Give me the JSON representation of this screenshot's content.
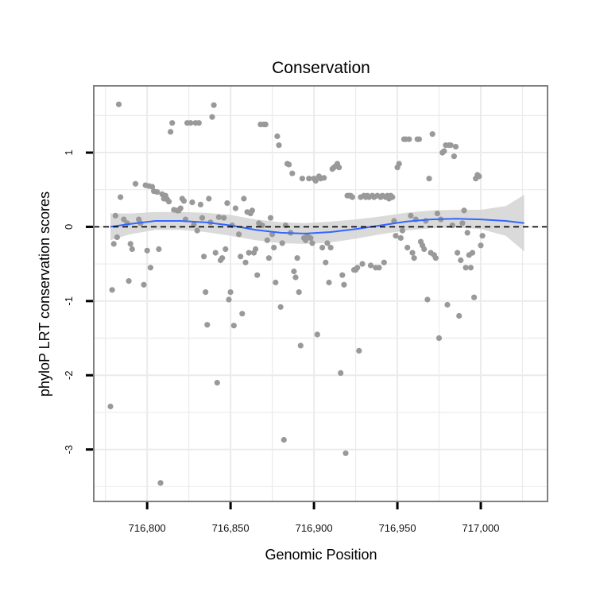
{
  "chart_data": {
    "type": "scatter",
    "title": "Conservation",
    "xlabel": "Genomic Position",
    "ylabel": "phyloP LRT conservation scores",
    "xlim": [
      716768,
      717040
    ],
    "ylim": [
      -3.7,
      1.9
    ],
    "x_ticks": [
      716800,
      716850,
      716900,
      716950,
      717000
    ],
    "x_tick_labels": [
      "716,800",
      "716,850",
      "716,900",
      "716,950",
      "717,000"
    ],
    "y_ticks": [
      -3,
      -2,
      -1,
      0,
      1
    ],
    "y_tick_labels": [
      "-3",
      "-2",
      "-1",
      "0",
      "1"
    ],
    "reference_line": 0,
    "colors": {
      "points": "#999999",
      "smooth_line": "#3366ff",
      "ribbon": "#d4d4d4",
      "grid": "#ebebeb",
      "frame": "#7f7f7f",
      "reference": "#000000"
    },
    "points": [
      [
        716778,
        -2.42
      ],
      [
        716779,
        -0.85
      ],
      [
        716780,
        -0.23
      ],
      [
        716781,
        0.15
      ],
      [
        716782,
        -0.14
      ],
      [
        716783,
        1.65
      ],
      [
        716784,
        0.4
      ],
      [
        716786,
        0.1
      ],
      [
        716788,
        0.05
      ],
      [
        716789,
        -0.73
      ],
      [
        716790,
        -0.23
      ],
      [
        716791,
        -0.3
      ],
      [
        716793,
        0.58
      ],
      [
        716795,
        0.1
      ],
      [
        716796,
        0.05
      ],
      [
        716798,
        -0.78
      ],
      [
        716799,
        0.56
      ],
      [
        716800,
        -0.32
      ],
      [
        716801,
        0.55
      ],
      [
        716802,
        -0.55
      ],
      [
        716803,
        0.54
      ],
      [
        716804,
        0.48
      ],
      [
        716806,
        0.47
      ],
      [
        716807,
        -0.3
      ],
      [
        716808,
        -3.45
      ],
      [
        716809,
        0.44
      ],
      [
        716810,
        0.38
      ],
      [
        716811,
        0.42
      ],
      [
        716812,
        0.37
      ],
      [
        716813,
        0.34
      ],
      [
        716814,
        1.28
      ],
      [
        716815,
        1.4
      ],
      [
        716816,
        0.23
      ],
      [
        716818,
        0.22
      ],
      [
        716819,
        0.22
      ],
      [
        716820,
        0.25
      ],
      [
        716821,
        0.38
      ],
      [
        716822,
        0.35
      ],
      [
        716823,
        0.1
      ],
      [
        716824,
        1.4
      ],
      [
        716826,
        1.4
      ],
      [
        716827,
        0.33
      ],
      [
        716828,
        0.03
      ],
      [
        716829,
        1.4
      ],
      [
        716830,
        -0.05
      ],
      [
        716831,
        1.4
      ],
      [
        716832,
        0.3
      ],
      [
        716833,
        0.12
      ],
      [
        716834,
        -0.4
      ],
      [
        716835,
        -0.88
      ],
      [
        716836,
        -1.32
      ],
      [
        716837,
        0.38
      ],
      [
        716838,
        0.06
      ],
      [
        716839,
        1.48
      ],
      [
        716840,
        1.64
      ],
      [
        716841,
        -0.35
      ],
      [
        716842,
        -2.1
      ],
      [
        716843,
        0.13
      ],
      [
        716844,
        -0.45
      ],
      [
        716845,
        -0.42
      ],
      [
        716846,
        0.12
      ],
      [
        716847,
        -0.3
      ],
      [
        716848,
        0.32
      ],
      [
        716849,
        -0.98
      ],
      [
        716850,
        -0.88
      ],
      [
        716851,
        0.02
      ],
      [
        716852,
        -1.33
      ],
      [
        716853,
        0.25
      ],
      [
        716855,
        -0.1
      ],
      [
        716856,
        -0.4
      ],
      [
        716857,
        -1.17
      ],
      [
        716858,
        0.38
      ],
      [
        716859,
        -0.48
      ],
      [
        716860,
        0.2
      ],
      [
        716861,
        -0.35
      ],
      [
        716862,
        0.18
      ],
      [
        716863,
        0.22
      ],
      [
        716864,
        -0.35
      ],
      [
        716865,
        -0.3
      ],
      [
        716866,
        -0.65
      ],
      [
        716867,
        0.05
      ],
      [
        716868,
        1.38
      ],
      [
        716869,
        0.02
      ],
      [
        716870,
        1.38
      ],
      [
        716871,
        1.38
      ],
      [
        716872,
        -0.18
      ],
      [
        716873,
        -0.42
      ],
      [
        716874,
        0.12
      ],
      [
        716875,
        -0.1
      ],
      [
        716876,
        -0.28
      ],
      [
        716877,
        -0.75
      ],
      [
        716878,
        1.22
      ],
      [
        716879,
        1.1
      ],
      [
        716880,
        -1.08
      ],
      [
        716881,
        -0.22
      ],
      [
        716882,
        -2.87
      ],
      [
        716883,
        0.02
      ],
      [
        716884,
        0.85
      ],
      [
        716885,
        0.84
      ],
      [
        716886,
        -0.08
      ],
      [
        716887,
        0.72
      ],
      [
        716888,
        -0.6
      ],
      [
        716889,
        -0.68
      ],
      [
        716890,
        -0.42
      ],
      [
        716891,
        -0.88
      ],
      [
        716892,
        -1.6
      ],
      [
        716893,
        0.65
      ],
      [
        716894,
        -0.15
      ],
      [
        716895,
        -0.18
      ],
      [
        716896,
        -0.12
      ],
      [
        716897,
        0.65
      ],
      [
        716898,
        -0.15
      ],
      [
        716899,
        -0.22
      ],
      [
        716900,
        0.65
      ],
      [
        716901,
        0.62
      ],
      [
        716902,
        -1.45
      ],
      [
        716903,
        0.68
      ],
      [
        716904,
        0.65
      ],
      [
        716905,
        -0.28
      ],
      [
        716906,
        0.66
      ],
      [
        716907,
        -0.48
      ],
      [
        716908,
        -0.22
      ],
      [
        716909,
        -0.75
      ],
      [
        716910,
        -0.28
      ],
      [
        716911,
        0.78
      ],
      [
        716912,
        0.8
      ],
      [
        716913,
        0.82
      ],
      [
        716914,
        0.85
      ],
      [
        716915,
        0.8
      ],
      [
        716916,
        -1.97
      ],
      [
        716917,
        -0.65
      ],
      [
        716918,
        -0.78
      ],
      [
        716919,
        -3.05
      ],
      [
        716920,
        0.42
      ],
      [
        716921,
        0.42
      ],
      [
        716922,
        0.42
      ],
      [
        716923,
        0.4
      ],
      [
        716924,
        -0.58
      ],
      [
        716925,
        -0.58
      ],
      [
        716926,
        -0.55
      ],
      [
        716927,
        -1.67
      ],
      [
        716928,
        0.4
      ],
      [
        716929,
        -0.5
      ],
      [
        716930,
        0.42
      ],
      [
        716931,
        0.4
      ],
      [
        716932,
        0.42
      ],
      [
        716933,
        0.4
      ],
      [
        716934,
        -0.52
      ],
      [
        716935,
        0.42
      ],
      [
        716936,
        0.4
      ],
      [
        716937,
        -0.55
      ],
      [
        716938,
        0.42
      ],
      [
        716939,
        -0.55
      ],
      [
        716940,
        0.4
      ],
      [
        716941,
        0.42
      ],
      [
        716942,
        -0.48
      ],
      [
        716943,
        0.4
      ],
      [
        716944,
        0.42
      ],
      [
        716945,
        0.38
      ],
      [
        716946,
        0.42
      ],
      [
        716947,
        0.4
      ],
      [
        716948,
        0.08
      ],
      [
        716949,
        -0.12
      ],
      [
        716950,
        0.8
      ],
      [
        716951,
        0.85
      ],
      [
        716952,
        -0.15
      ],
      [
        716953,
        -0.05
      ],
      [
        716954,
        1.18
      ],
      [
        716955,
        1.18
      ],
      [
        716956,
        -0.28
      ],
      [
        716957,
        1.18
      ],
      [
        716958,
        0.15
      ],
      [
        716959,
        -0.35
      ],
      [
        716960,
        -0.42
      ],
      [
        716961,
        0.1
      ],
      [
        716962,
        1.18
      ],
      [
        716963,
        1.18
      ],
      [
        716964,
        -0.2
      ],
      [
        716965,
        -0.25
      ],
      [
        716966,
        -0.3
      ],
      [
        716967,
        0.08
      ],
      [
        716968,
        -0.98
      ],
      [
        716969,
        0.65
      ],
      [
        716970,
        -0.35
      ],
      [
        716971,
        1.25
      ],
      [
        716972,
        -0.38
      ],
      [
        716973,
        -0.42
      ],
      [
        716974,
        0.18
      ],
      [
        716975,
        -1.5
      ],
      [
        716976,
        0.1
      ],
      [
        716977,
        1.0
      ],
      [
        716978,
        1.02
      ],
      [
        716979,
        1.1
      ],
      [
        716980,
        -1.05
      ],
      [
        716981,
        1.1
      ],
      [
        716982,
        1.1
      ],
      [
        716983,
        0.02
      ],
      [
        716984,
        0.95
      ],
      [
        716985,
        1.08
      ],
      [
        716986,
        -0.35
      ],
      [
        716987,
        -1.2
      ],
      [
        716988,
        -0.45
      ],
      [
        716989,
        0.05
      ],
      [
        716990,
        0.22
      ],
      [
        716991,
        -0.55
      ],
      [
        716992,
        -0.08
      ],
      [
        716993,
        -0.38
      ],
      [
        716994,
        -0.55
      ],
      [
        716995,
        -0.35
      ],
      [
        716996,
        -0.95
      ],
      [
        716997,
        0.65
      ],
      [
        716998,
        0.7
      ],
      [
        716999,
        0.68
      ],
      [
        717000,
        -0.25
      ],
      [
        717001,
        -0.12
      ]
    ],
    "smooth_curve": [
      [
        716778,
        0.0
      ],
      [
        716790,
        0.04
      ],
      [
        716805,
        0.08
      ],
      [
        716820,
        0.08
      ],
      [
        716835,
        0.06
      ],
      [
        716850,
        0.02
      ],
      [
        716865,
        -0.04
      ],
      [
        716880,
        -0.08
      ],
      [
        716895,
        -0.09
      ],
      [
        716910,
        -0.07
      ],
      [
        716925,
        -0.03
      ],
      [
        716940,
        0.02
      ],
      [
        716955,
        0.07
      ],
      [
        716970,
        0.1
      ],
      [
        716985,
        0.11
      ],
      [
        717000,
        0.1
      ],
      [
        717015,
        0.08
      ],
      [
        717026,
        0.05
      ]
    ],
    "ribbon_halfwidth": [
      0.18,
      0.14,
      0.12,
      0.12,
      0.13,
      0.14,
      0.14,
      0.14,
      0.14,
      0.14,
      0.13,
      0.12,
      0.12,
      0.12,
      0.12,
      0.13,
      0.2,
      0.38
    ]
  }
}
